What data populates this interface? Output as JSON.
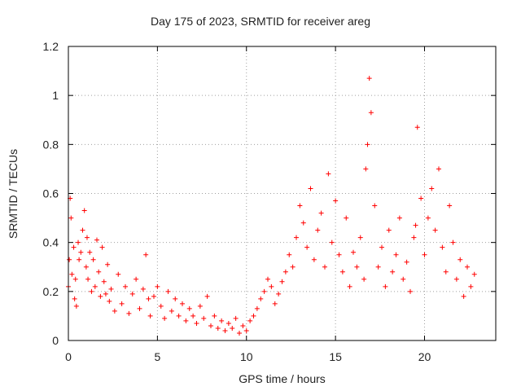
{
  "chart_data": {
    "type": "scatter",
    "title": "Day 175 of 2023, SRMTID for receiver areg",
    "xlabel": "GPS time / hours",
    "ylabel": "SRMTID / TECUs",
    "xlim": [
      0,
      24
    ],
    "ylim": [
      0,
      1.2
    ],
    "xticks": [
      0,
      5,
      10,
      15,
      20
    ],
    "xtick_labels": [
      "0",
      "5",
      "10",
      "15",
      "20"
    ],
    "yticks": [
      0,
      0.2,
      0.4,
      0.6,
      0.8,
      1,
      1.2
    ],
    "ytick_labels": [
      "0",
      "0.2",
      "0.4",
      "0.6",
      "0.8",
      "1",
      "1.2"
    ],
    "grid": true,
    "marker": "+",
    "series_color": "#ff0000",
    "series": [
      {
        "name": "SRMTID",
        "x": [
          0.0,
          0.05,
          0.1,
          0.15,
          0.2,
          0.3,
          0.35,
          0.4,
          0.45,
          0.55,
          0.6,
          0.7,
          0.8,
          0.9,
          1.0,
          1.05,
          1.1,
          1.2,
          1.3,
          1.4,
          1.5,
          1.6,
          1.7,
          1.8,
          1.9,
          2.0,
          2.1,
          2.2,
          2.3,
          2.4,
          2.6,
          2.8,
          3.0,
          3.2,
          3.4,
          3.6,
          3.8,
          4.0,
          4.2,
          4.35,
          4.5,
          4.6,
          4.8,
          5.0,
          5.2,
          5.4,
          5.6,
          5.8,
          6.0,
          6.2,
          6.4,
          6.6,
          6.8,
          7.0,
          7.2,
          7.4,
          7.6,
          7.8,
          8.0,
          8.2,
          8.4,
          8.6,
          8.8,
          9.0,
          9.2,
          9.4,
          9.6,
          9.8,
          10.0,
          10.2,
          10.4,
          10.6,
          10.8,
          11.0,
          11.2,
          11.4,
          11.6,
          11.8,
          12.0,
          12.2,
          12.4,
          12.6,
          12.8,
          13.0,
          13.2,
          13.4,
          13.6,
          13.8,
          14.0,
          14.2,
          14.4,
          14.6,
          14.8,
          15.0,
          15.2,
          15.4,
          15.6,
          15.8,
          16.0,
          16.2,
          16.4,
          16.6,
          16.7,
          16.8,
          16.9,
          17.0,
          17.2,
          17.4,
          17.6,
          17.8,
          18.0,
          18.2,
          18.4,
          18.6,
          18.8,
          19.0,
          19.2,
          19.4,
          19.5,
          19.6,
          19.8,
          20.0,
          20.2,
          20.4,
          20.6,
          20.8,
          21.0,
          21.2,
          21.4,
          21.6,
          21.8,
          22.0,
          22.2,
          22.4,
          22.6,
          22.8
        ],
        "y": [
          0.22,
          0.33,
          0.58,
          0.5,
          0.27,
          0.38,
          0.17,
          0.25,
          0.14,
          0.4,
          0.33,
          0.36,
          0.45,
          0.53,
          0.3,
          0.42,
          0.25,
          0.36,
          0.2,
          0.33,
          0.22,
          0.41,
          0.28,
          0.18,
          0.38,
          0.24,
          0.19,
          0.31,
          0.16,
          0.21,
          0.12,
          0.27,
          0.15,
          0.22,
          0.11,
          0.19,
          0.25,
          0.13,
          0.21,
          0.35,
          0.17,
          0.1,
          0.18,
          0.22,
          0.14,
          0.09,
          0.2,
          0.12,
          0.17,
          0.1,
          0.15,
          0.08,
          0.13,
          0.1,
          0.07,
          0.14,
          0.09,
          0.18,
          0.06,
          0.1,
          0.05,
          0.08,
          0.04,
          0.07,
          0.05,
          0.09,
          0.03,
          0.06,
          0.04,
          0.08,
          0.1,
          0.13,
          0.17,
          0.2,
          0.25,
          0.22,
          0.15,
          0.19,
          0.24,
          0.28,
          0.35,
          0.3,
          0.42,
          0.55,
          0.48,
          0.38,
          0.62,
          0.33,
          0.45,
          0.52,
          0.3,
          0.68,
          0.4,
          0.57,
          0.35,
          0.28,
          0.5,
          0.22,
          0.36,
          0.3,
          0.42,
          0.25,
          0.7,
          0.8,
          1.07,
          0.93,
          0.55,
          0.3,
          0.38,
          0.22,
          0.45,
          0.28,
          0.35,
          0.5,
          0.25,
          0.32,
          0.2,
          0.42,
          0.47,
          0.87,
          0.58,
          0.35,
          0.5,
          0.62,
          0.45,
          0.7,
          0.38,
          0.28,
          0.55,
          0.4,
          0.25,
          0.33,
          0.18,
          0.3,
          0.22,
          0.27
        ]
      }
    ]
  }
}
